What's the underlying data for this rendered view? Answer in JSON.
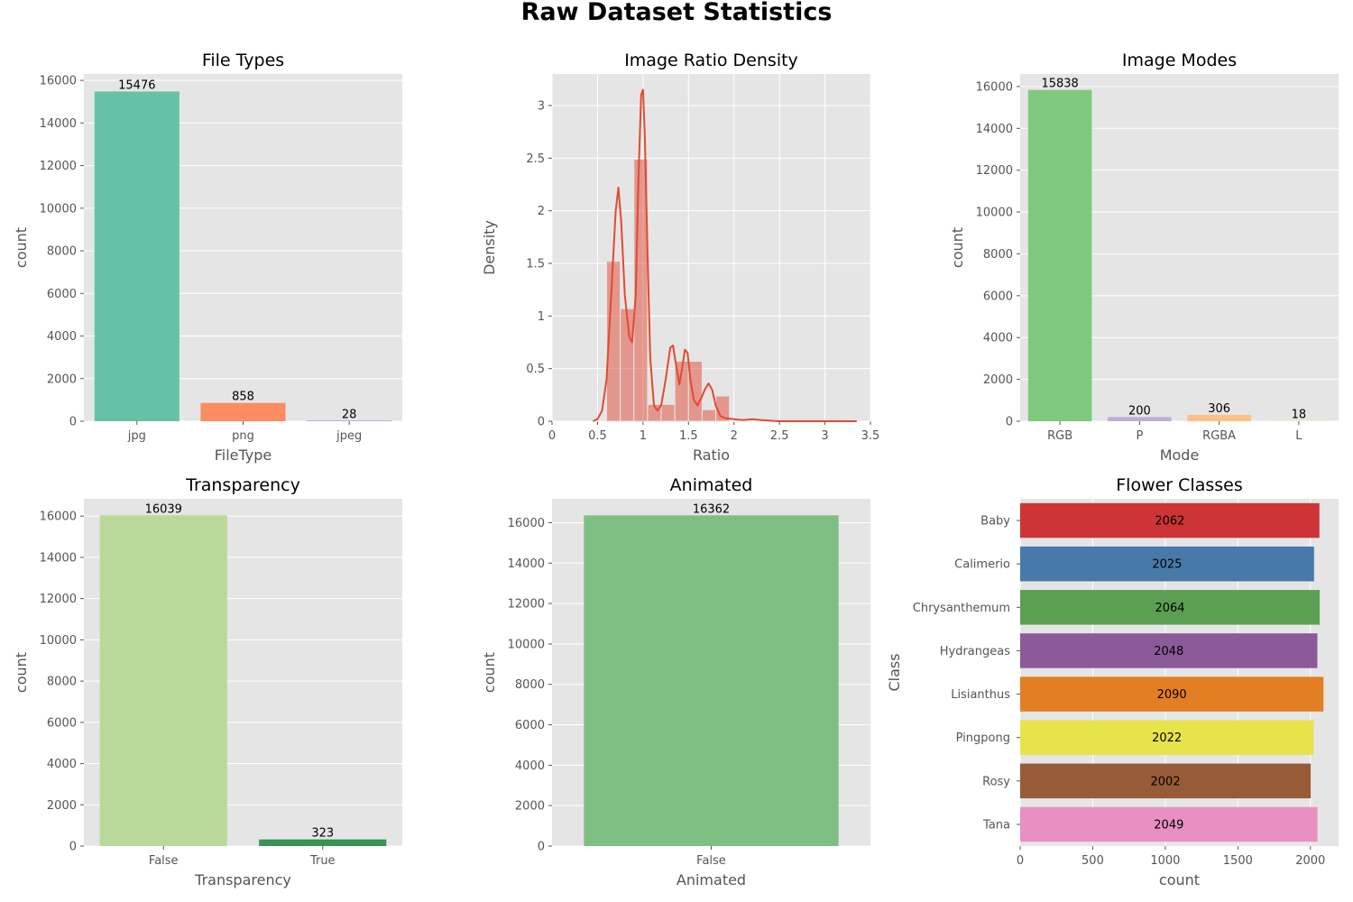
{
  "figure": {
    "title": "Raw Dataset Statistics",
    "background": "#ffffff",
    "panel_background": "#e5e5e5",
    "grid_color": "#ffffff"
  },
  "chart_data": [
    {
      "id": "filetypes",
      "type": "bar",
      "orientation": "vertical",
      "title": "File Types",
      "xlabel": "FileType",
      "ylabel": "count",
      "categories": [
        "jpg",
        "png",
        "jpeg"
      ],
      "values": [
        15476,
        858,
        28
      ],
      "colors": [
        "#66c2a5",
        "#fc8d62",
        "#8da0cb"
      ],
      "ylim": [
        0,
        16300
      ],
      "yticks": [
        0,
        2000,
        4000,
        6000,
        8000,
        10000,
        12000,
        14000,
        16000
      ],
      "grid": true
    },
    {
      "id": "ratio",
      "type": "histogram",
      "title": "Image Ratio Density",
      "xlabel": "Ratio",
      "ylabel": "Density",
      "xlim": [
        0.0,
        3.5
      ],
      "ylim": [
        0.0,
        3.3
      ],
      "xticks": [
        0.0,
        0.5,
        1.0,
        1.5,
        2.0,
        2.5,
        3.0,
        3.5
      ],
      "yticks": [
        0.0,
        0.5,
        1.0,
        1.5,
        2.0,
        2.5,
        3.0
      ],
      "color": "#e24a33",
      "bin_edges": [
        0.6,
        0.75,
        0.9,
        1.05,
        1.2,
        1.35,
        1.5,
        1.65,
        1.8,
        1.95
      ],
      "densities": [
        1.52,
        1.07,
        2.49,
        0.16,
        0.16,
        0.57,
        0.57,
        0.11,
        0.24
      ],
      "kde": {
        "x": [
          0.45,
          0.5,
          0.55,
          0.6,
          0.65,
          0.7,
          0.73,
          0.76,
          0.8,
          0.85,
          0.88,
          0.92,
          0.95,
          0.98,
          1.0,
          1.02,
          1.05,
          1.08,
          1.12,
          1.16,
          1.2,
          1.25,
          1.3,
          1.33,
          1.36,
          1.4,
          1.43,
          1.46,
          1.49,
          1.52,
          1.56,
          1.6,
          1.64,
          1.68,
          1.72,
          1.76,
          1.8,
          1.85,
          1.9,
          2.0,
          2.1,
          2.2,
          2.3,
          2.5,
          3.0,
          3.35
        ],
        "y": [
          0.0,
          0.02,
          0.1,
          0.4,
          1.2,
          2.0,
          2.22,
          1.9,
          1.2,
          0.8,
          0.75,
          1.2,
          2.3,
          3.1,
          3.15,
          2.7,
          1.6,
          0.6,
          0.15,
          0.1,
          0.15,
          0.4,
          0.7,
          0.72,
          0.55,
          0.35,
          0.5,
          0.68,
          0.65,
          0.4,
          0.2,
          0.15,
          0.22,
          0.3,
          0.36,
          0.3,
          0.15,
          0.05,
          0.03,
          0.02,
          0.01,
          0.02,
          0.01,
          0.0,
          0.0,
          0.0
        ]
      },
      "grid": true
    },
    {
      "id": "modes",
      "type": "bar",
      "orientation": "vertical",
      "title": "Image Modes",
      "xlabel": "Mode",
      "ylabel": "count",
      "categories": [
        "RGB",
        "P",
        "RGBA",
        "L"
      ],
      "values": [
        15838,
        200,
        306,
        18
      ],
      "colors": [
        "#7fc97f",
        "#beaed4",
        "#fdc086",
        "#ffff99"
      ],
      "ylim": [
        0,
        16600
      ],
      "yticks": [
        0,
        2000,
        4000,
        6000,
        8000,
        10000,
        12000,
        14000,
        16000
      ],
      "grid": true
    },
    {
      "id": "transparency",
      "type": "bar",
      "orientation": "vertical",
      "title": "Transparency",
      "xlabel": "Transparency",
      "ylabel": "count",
      "categories": [
        "False",
        "True"
      ],
      "values": [
        16039,
        323
      ],
      "colors": [
        "#b8d99a",
        "#3a9254"
      ],
      "ylim": [
        0,
        16840
      ],
      "yticks": [
        0,
        2000,
        4000,
        6000,
        8000,
        10000,
        12000,
        14000,
        16000
      ],
      "grid": true
    },
    {
      "id": "animated",
      "type": "bar",
      "orientation": "vertical",
      "title": "Animated",
      "xlabel": "Animated",
      "ylabel": "count",
      "categories": [
        "False"
      ],
      "values": [
        16362
      ],
      "colors": [
        "#7fbf84"
      ],
      "ylim": [
        0,
        17180
      ],
      "yticks": [
        0,
        2000,
        4000,
        6000,
        8000,
        10000,
        12000,
        14000,
        16000
      ],
      "grid": true
    },
    {
      "id": "classes",
      "type": "bar",
      "orientation": "horizontal",
      "title": "Flower Classes",
      "xlabel": "count",
      "ylabel": "Class",
      "categories": [
        "Baby",
        "Calimerio",
        "Chrysanthemum",
        "Hydrangeas",
        "Lisianthus",
        "Pingpong",
        "Rosy",
        "Tana"
      ],
      "values": [
        2062,
        2025,
        2064,
        2048,
        2090,
        2022,
        2002,
        2049
      ],
      "colors": [
        "#cd3436",
        "#477aa8",
        "#5ba052",
        "#8d5a99",
        "#e17f22",
        "#e7e34a",
        "#975b38",
        "#e890c1"
      ],
      "xlim": [
        0,
        2194
      ],
      "xticks": [
        0,
        500,
        1000,
        1500,
        2000
      ],
      "grid": true
    }
  ]
}
